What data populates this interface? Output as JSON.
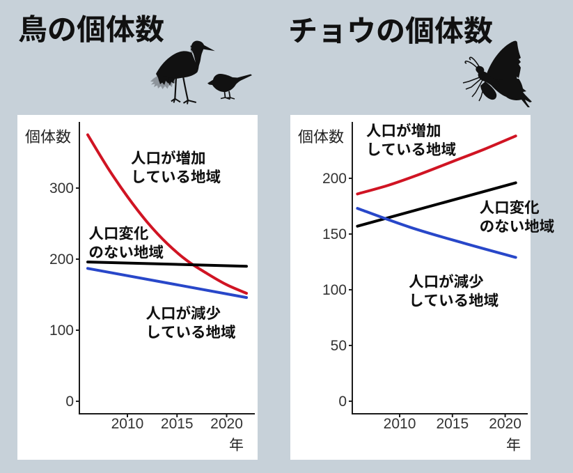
{
  "page": {
    "background_color": "#c7d1d9",
    "panel_color": "#ffffff",
    "text_color": "#111111"
  },
  "decorations": {
    "left": [
      "heron-icon",
      "small-bird-icon"
    ],
    "right": [
      "butterfly-icon"
    ],
    "silhouette_color": "#111111",
    "heron_wing_color": "#8d949b"
  },
  "chart_data": [
    {
      "type": "line",
      "title": "鳥の個体数",
      "ylabel": "個体数",
      "xlabel": "年",
      "xticks": [
        2010,
        2015,
        2020
      ],
      "yticks": [
        0,
        100,
        200,
        300
      ],
      "xlim": [
        2005.16,
        2022.84
      ],
      "ylim": [
        -17.6,
        393.1
      ],
      "grid": false,
      "legend": "none (labels drawn next to lines)",
      "axis_color": "#1a1a1a",
      "tick_label_color": "#333333",
      "series": [
        {
          "id": "increase",
          "name": "人口が増加している地域",
          "color": "#d01423",
          "x": [
            2006,
            2008,
            2010,
            2012,
            2014,
            2016,
            2018,
            2020,
            2022
          ],
          "values": [
            375,
            329,
            288,
            252,
            222,
            198,
            180,
            164,
            152
          ]
        },
        {
          "id": "nochange",
          "name": "人口変化のない地域",
          "color": "#000000",
          "x": [
            2006,
            2022
          ],
          "values": [
            196,
            190
          ]
        },
        {
          "id": "decrease",
          "name": "人口が減少している地域",
          "color": "#2847c9",
          "x": [
            2006,
            2022
          ],
          "values": [
            187,
            146
          ]
        }
      ],
      "annotations": [
        {
          "lines": [
            "人口が増加",
            "している地域"
          ],
          "x": 2010.35,
          "y": 352.0
        },
        {
          "lines": [
            "人口変化",
            "のない地域"
          ],
          "x": 2006.1,
          "y": 246.0
        },
        {
          "lines": [
            "人口が減少",
            "している地域"
          ],
          "x": 2011.86,
          "y": 133.5
        }
      ]
    },
    {
      "type": "line",
      "title": "チョウの個体数",
      "ylabel": "個体数",
      "xlabel": "年",
      "xticks": [
        2010,
        2015,
        2020
      ],
      "yticks": [
        0,
        50,
        100,
        150,
        200
      ],
      "xlim": [
        2005.51,
        2022.14
      ],
      "ylim": [
        -11.3,
        250.6
      ],
      "grid": false,
      "legend": "none (labels drawn next to lines)",
      "axis_color": "#1a1a1a",
      "tick_label_color": "#333333",
      "series": [
        {
          "id": "increase",
          "name": "人口が増加している地域",
          "color": "#d01423",
          "x": [
            2006,
            2009,
            2012,
            2015,
            2018,
            2021
          ],
          "values": [
            186,
            194,
            204,
            215,
            226,
            238
          ]
        },
        {
          "id": "nochange",
          "name": "人口変化のない地域",
          "color": "#000000",
          "x": [
            2006,
            2021
          ],
          "values": [
            157,
            196
          ]
        },
        {
          "id": "decrease",
          "name": "人口が減少している地域",
          "color": "#2847c9",
          "x": [
            2006,
            2011,
            2016,
            2021
          ],
          "values": [
            173,
            156,
            142,
            129
          ]
        }
      ],
      "annotations": [
        {
          "lines": [
            "人口が増加",
            "している地域"
          ],
          "x": 2006.83,
          "y": 249.0
        },
        {
          "lines": [
            "人口変化",
            "のない地域"
          ],
          "x": 2017.57,
          "y": 180.0
        },
        {
          "lines": [
            "人口が減少",
            "している地域"
          ],
          "x": 2010.86,
          "y": 113.5
        }
      ]
    }
  ]
}
